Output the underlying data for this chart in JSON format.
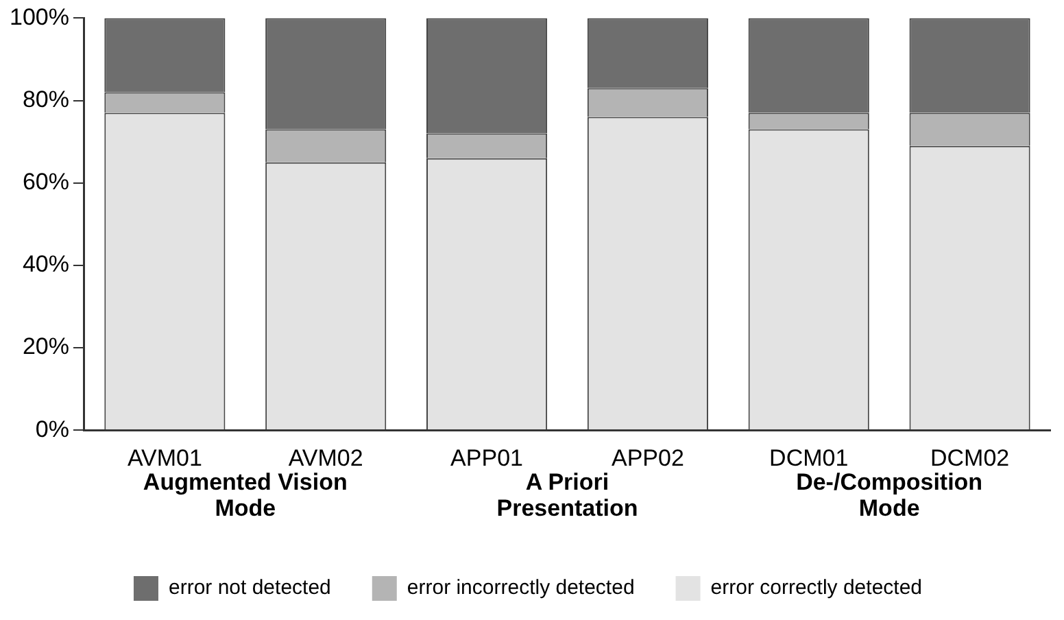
{
  "chart_data": {
    "type": "bar",
    "stacked": true,
    "categories": [
      "AVM01",
      "AVM02",
      "APP01",
      "APP02",
      "DCM01",
      "DCM02"
    ],
    "series": [
      {
        "name": "error correctly detected",
        "color": "#e3e3e3",
        "values": [
          77,
          65,
          66,
          76,
          73,
          69
        ]
      },
      {
        "name": "error incorrectly detected",
        "color": "#b4b4b4",
        "values": [
          5,
          8,
          6,
          7,
          4,
          8
        ]
      },
      {
        "name": "error not detected",
        "color": "#6e6e6e",
        "values": [
          18,
          27,
          28,
          17,
          23,
          23
        ]
      }
    ],
    "ylim": [
      0,
      100
    ],
    "yticks": [
      {
        "value": 0,
        "label": "0%"
      },
      {
        "value": 20,
        "label": "20%"
      },
      {
        "value": 40,
        "label": "40%"
      },
      {
        "value": 60,
        "label": "60%"
      },
      {
        "value": 80,
        "label": "80%"
      },
      {
        "value": 100,
        "label": "100%"
      }
    ],
    "annotations": [
      "Augmented Vision\nMode",
      "A Priori\nPresentation",
      "De-/Composition\nMode"
    ],
    "grid": false,
    "legend": "bottom"
  }
}
